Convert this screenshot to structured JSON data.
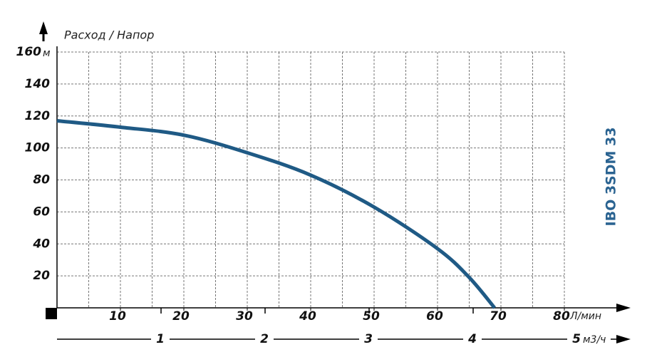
{
  "chart_data": {
    "type": "line",
    "title": "IBO 3SDM 33",
    "y_label": "Расход / Напор",
    "y_unit": "м",
    "x_unit": "Л/мин",
    "x2_unit": "м3/ч",
    "x": [
      0,
      10,
      20,
      30,
      40,
      50,
      60,
      65,
      69
    ],
    "series": [
      {
        "name": "IBO 3SDM 33",
        "color": "#1f5a85",
        "values": [
          117,
          113,
          108,
          97,
          83,
          63,
          37,
          19,
          0
        ]
      }
    ],
    "xlim": [
      0,
      80
    ],
    "xticks": [
      10,
      20,
      30,
      40,
      50,
      60,
      70,
      80
    ],
    "xgrid": [
      5,
      10,
      15,
      20,
      25,
      30,
      35,
      40,
      45,
      50,
      55,
      60,
      65,
      70,
      75,
      80
    ],
    "ylim": [
      0,
      160
    ],
    "yticks": [
      20,
      40,
      60,
      80,
      100,
      120,
      140,
      160
    ],
    "x2lim": [
      0,
      5
    ],
    "x2ticks": [
      1,
      2,
      3,
      4,
      5
    ],
    "grid": true
  }
}
